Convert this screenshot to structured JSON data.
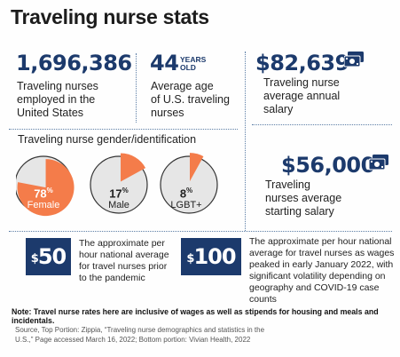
{
  "title": "Traveling nurse stats",
  "stats": {
    "employed": {
      "value": "1,696,386",
      "label_lines": [
        "Traveling nurses",
        "employed in the",
        "United States"
      ]
    },
    "age": {
      "value": "44",
      "unit_lines": [
        "YEARS",
        "OLD"
      ],
      "label_lines": [
        "Average age",
        "of U.S. traveling",
        "nurses"
      ]
    },
    "annual_salary": {
      "value": "$82,639",
      "label_lines": [
        "Traveling nurse",
        "average annual",
        "salary"
      ],
      "icon": "money-icon"
    },
    "starting_salary": {
      "value": "$56,000",
      "label_lines": [
        "Traveling",
        "nurses average",
        "starting salary"
      ],
      "icon": "money-icon"
    }
  },
  "gender": {
    "heading": "Traveling nurse gender/identification",
    "pies": [
      {
        "pct": "78",
        "label": "Female",
        "fraction": 0.78
      },
      {
        "pct": "17",
        "label": "Male",
        "fraction": 0.17
      },
      {
        "pct": "8",
        "label": "LGBT+",
        "fraction": 0.08
      }
    ],
    "colors": {
      "highlight": "#f47c4a",
      "base": "#e6e6e6",
      "outline": "#333333"
    }
  },
  "hourly": [
    {
      "value": "50",
      "currency": "$",
      "desc_lines": [
        "The approximate per",
        "hour national average",
        "for travel nurses prior",
        "to the pandemic"
      ]
    },
    {
      "value": "100",
      "currency": "$",
      "desc_lines": [
        "The approximate per hour national",
        "average for travel nurses as wages",
        "peaked in early January 2022, with",
        "significant volatility depending on",
        "geography and COVID-19 case counts"
      ]
    }
  ],
  "note": "Note: Travel nurse rates here are inclusive of wages as well as stipends for housing and meals and incidentals.",
  "source_lines": [
    "Source, Top Portion: Zippia, “Traveling nurse demographics and statistics in the",
    "U.S.,” Page accessed March 16, 2022; Bottom portion: Vivian Health, 2022"
  ],
  "colors": {
    "navy": "#1c3a6c",
    "orange": "#f47c4a"
  }
}
